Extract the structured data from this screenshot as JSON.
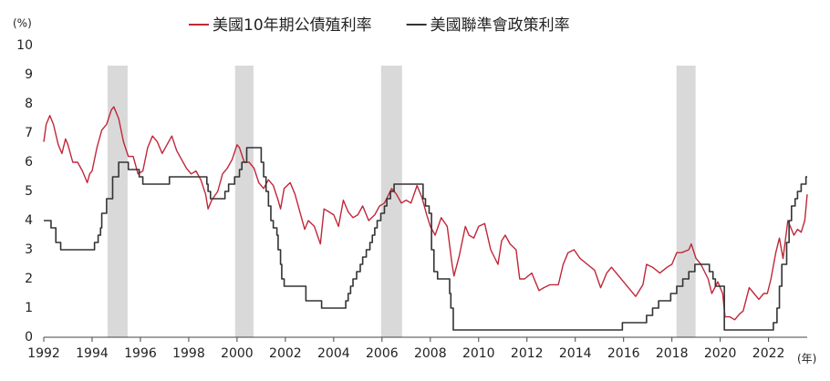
{
  "chart_data": {
    "type": "line",
    "y_unit": "(%)",
    "x_unit": "(年)",
    "xlim": [
      1992,
      2023.6
    ],
    "ylim": [
      0,
      10
    ],
    "xticks": [
      1992,
      1994,
      1996,
      1998,
      2000,
      2002,
      2004,
      2006,
      2008,
      2010,
      2012,
      2014,
      2016,
      2018,
      2020,
      2022
    ],
    "yticks": [
      0,
      1,
      2,
      3,
      4,
      5,
      6,
      7,
      8,
      9,
      10
    ],
    "grid": false,
    "legend": "top",
    "shaded": [
      [
        1994.64,
        1995.47
      ],
      [
        1999.92,
        2000.68
      ],
      [
        2005.96,
        2006.83
      ],
      [
        2018.19,
        2018.98
      ]
    ],
    "shade_color": "#d9d9d9",
    "series": [
      {
        "name": "美國10年期公債殖利率",
        "color": "#c0273a",
        "step": false,
        "x": [
          1992.0,
          1992.1,
          1992.25,
          1992.4,
          1992.6,
          1992.75,
          1992.9,
          1993.0,
          1993.2,
          1993.4,
          1993.6,
          1993.8,
          1993.9,
          1994.0,
          1994.2,
          1994.4,
          1994.6,
          1994.8,
          1994.9,
          1995.1,
          1995.3,
          1995.5,
          1995.7,
          1995.9,
          1996.1,
          1996.3,
          1996.5,
          1996.7,
          1996.9,
          1997.1,
          1997.3,
          1997.5,
          1997.7,
          1997.9,
          1998.1,
          1998.3,
          1998.5,
          1998.7,
          1998.8,
          1998.95,
          1999.2,
          1999.4,
          1999.6,
          1999.8,
          2000.0,
          2000.1,
          2000.3,
          2000.5,
          2000.7,
          2000.9,
          2001.1,
          2001.3,
          2001.5,
          2001.7,
          2001.8,
          2001.95,
          2002.2,
          2002.4,
          2002.6,
          2002.8,
          2002.95,
          2003.2,
          2003.45,
          2003.6,
          2003.8,
          2004.0,
          2004.2,
          2004.4,
          2004.6,
          2004.8,
          2005.0,
          2005.2,
          2005.45,
          2005.7,
          2005.9,
          2006.1,
          2006.4,
          2006.6,
          2006.8,
          2007.0,
          2007.2,
          2007.45,
          2007.65,
          2007.85,
          2008.0,
          2008.2,
          2008.45,
          2008.7,
          2008.9,
          2008.98,
          2009.2,
          2009.45,
          2009.6,
          2009.8,
          2010.0,
          2010.25,
          2010.5,
          2010.8,
          2010.95,
          2011.1,
          2011.3,
          2011.55,
          2011.7,
          2011.9,
          2012.2,
          2012.5,
          2012.7,
          2012.95,
          2013.3,
          2013.5,
          2013.7,
          2013.95,
          2014.2,
          2014.5,
          2014.8,
          2015.05,
          2015.3,
          2015.5,
          2015.8,
          2016.1,
          2016.5,
          2016.8,
          2016.95,
          2017.2,
          2017.5,
          2017.8,
          2018.0,
          2018.2,
          2018.4,
          2018.7,
          2018.8,
          2019.0,
          2019.2,
          2019.5,
          2019.65,
          2019.9,
          2020.1,
          2020.2,
          2020.4,
          2020.6,
          2020.8,
          2020.95,
          2021.2,
          2021.4,
          2021.6,
          2021.8,
          2021.95,
          2022.1,
          2022.3,
          2022.45,
          2022.6,
          2022.8,
          2022.9,
          2023.05,
          2023.2,
          2023.35,
          2023.5,
          2023.6
        ],
        "values": [
          6.7,
          7.3,
          7.6,
          7.3,
          6.6,
          6.3,
          6.8,
          6.6,
          6.0,
          6.0,
          5.7,
          5.3,
          5.6,
          5.7,
          6.5,
          7.1,
          7.3,
          7.8,
          7.9,
          7.5,
          6.7,
          6.2,
          6.2,
          5.6,
          5.7,
          6.5,
          6.9,
          6.7,
          6.3,
          6.6,
          6.9,
          6.4,
          6.1,
          5.8,
          5.6,
          5.7,
          5.4,
          4.9,
          4.4,
          4.7,
          5.0,
          5.6,
          5.8,
          6.1,
          6.6,
          6.5,
          6.0,
          6.0,
          5.8,
          5.3,
          5.1,
          5.4,
          5.2,
          4.7,
          4.4,
          5.1,
          5.3,
          4.9,
          4.3,
          3.7,
          4.0,
          3.8,
          3.2,
          4.4,
          4.3,
          4.2,
          3.8,
          4.7,
          4.3,
          4.1,
          4.2,
          4.5,
          4.0,
          4.2,
          4.5,
          4.6,
          5.1,
          4.9,
          4.6,
          4.7,
          4.6,
          5.2,
          4.8,
          4.2,
          3.8,
          3.5,
          4.1,
          3.8,
          2.5,
          2.1,
          2.8,
          3.8,
          3.5,
          3.4,
          3.8,
          3.9,
          3.0,
          2.5,
          3.3,
          3.5,
          3.2,
          3.0,
          2.0,
          2.0,
          2.2,
          1.6,
          1.7,
          1.8,
          1.8,
          2.5,
          2.9,
          3.0,
          2.7,
          2.5,
          2.3,
          1.7,
          2.2,
          2.4,
          2.1,
          1.8,
          1.4,
          1.8,
          2.5,
          2.4,
          2.2,
          2.4,
          2.5,
          2.9,
          2.9,
          3.0,
          3.2,
          2.7,
          2.5,
          2.0,
          1.5,
          1.9,
          1.5,
          0.7,
          0.7,
          0.6,
          0.8,
          0.9,
          1.7,
          1.5,
          1.3,
          1.5,
          1.5,
          2.0,
          2.9,
          3.4,
          2.7,
          4.0,
          3.8,
          3.5,
          3.7,
          3.6,
          4.0,
          4.9
        ]
      },
      {
        "name": "美國聯準會政策利率",
        "color": "#333333",
        "step": true,
        "x": [
          1992.0,
          1992.3,
          1992.5,
          1992.7,
          1994.1,
          1994.25,
          1994.35,
          1994.4,
          1994.6,
          1994.85,
          1995.1,
          1995.5,
          1995.95,
          1996.1,
          1997.2,
          1998.75,
          1998.8,
          1998.9,
          1999.5,
          1999.65,
          1999.9,
          2000.1,
          2000.2,
          2000.4,
          2001.0,
          2001.1,
          2001.2,
          2001.3,
          2001.4,
          2001.5,
          2001.65,
          2001.7,
          2001.8,
          2001.85,
          2001.95,
          2002.85,
          2003.5,
          2004.5,
          2004.6,
          2004.7,
          2004.8,
          2004.95,
          2005.1,
          2005.2,
          2005.35,
          2005.5,
          2005.6,
          2005.7,
          2005.8,
          2005.95,
          2006.1,
          2006.2,
          2006.35,
          2006.5,
          2007.7,
          2007.8,
          2007.95,
          2008.05,
          2008.15,
          2008.3,
          2008.8,
          2008.85,
          2008.95,
          2015.95,
          2016.95,
          2017.2,
          2017.45,
          2017.95,
          2018.2,
          2018.45,
          2018.7,
          2018.95,
          2019.55,
          2019.7,
          2019.8,
          2020.17,
          2022.2,
          2022.35,
          2022.45,
          2022.55,
          2022.75,
          2022.85,
          2022.95,
          2023.1,
          2023.2,
          2023.35,
          2023.55,
          2023.6
        ],
        "values": [
          4.0,
          3.75,
          3.25,
          3.0,
          3.25,
          3.5,
          3.75,
          4.25,
          4.75,
          5.5,
          6.0,
          5.75,
          5.5,
          5.25,
          5.5,
          5.25,
          5.0,
          4.75,
          5.0,
          5.25,
          5.5,
          5.75,
          6.0,
          6.5,
          6.0,
          5.5,
          5.0,
          4.5,
          4.0,
          3.75,
          3.5,
          3.0,
          2.5,
          2.0,
          1.75,
          1.25,
          1.0,
          1.25,
          1.5,
          1.75,
          2.0,
          2.25,
          2.5,
          2.75,
          3.0,
          3.25,
          3.5,
          3.75,
          4.0,
          4.25,
          4.5,
          4.75,
          5.0,
          5.25,
          4.75,
          4.5,
          4.25,
          3.0,
          2.25,
          2.0,
          1.5,
          1.0,
          0.25,
          0.5,
          0.75,
          1.0,
          1.25,
          1.5,
          1.75,
          2.0,
          2.25,
          2.5,
          2.25,
          2.0,
          1.75,
          0.25,
          0.5,
          1.0,
          1.75,
          2.5,
          3.25,
          4.0,
          4.5,
          4.75,
          5.0,
          5.25,
          5.5,
          5.5
        ]
      }
    ]
  }
}
